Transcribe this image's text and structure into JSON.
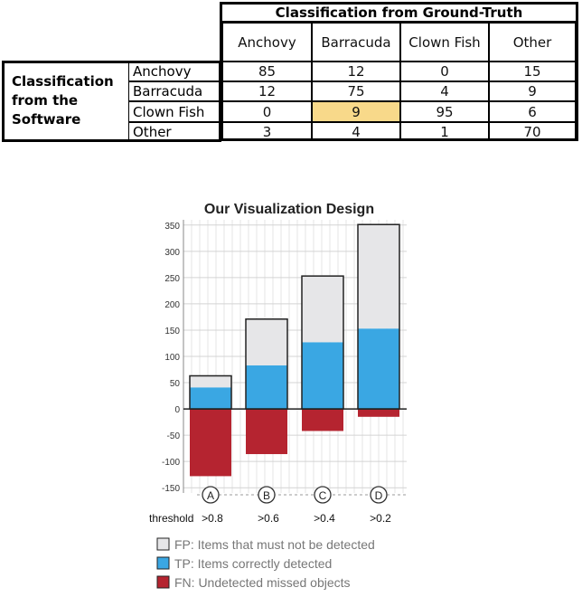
{
  "matrix": {
    "gt_title": "Classification from Ground-Truth",
    "sw_title_lines": [
      "Classification",
      "from the",
      "Software"
    ],
    "columns": [
      "Anchovy",
      "Barracuda",
      "Clown Fish",
      "Other"
    ],
    "rows": [
      {
        "label": "Anchovy",
        "values": [
          "85",
          "12",
          "0",
          "15"
        ]
      },
      {
        "label": "Barracuda",
        "values": [
          "12",
          "75",
          "4",
          "9"
        ]
      },
      {
        "label": "Clown Fish",
        "values": [
          "0",
          "9",
          "95",
          "6"
        ]
      },
      {
        "label": "Other",
        "values": [
          "3",
          "4",
          "1",
          "70"
        ]
      }
    ],
    "highlight_color": "#f8d98a"
  },
  "chart_data": {
    "type": "bar",
    "title": "Our Visualization Design",
    "ylim": [
      -160,
      360
    ],
    "yticks": [
      350,
      300,
      250,
      200,
      150,
      100,
      50,
      0,
      -50,
      -100,
      -150
    ],
    "categories": [
      "A",
      "B",
      "C",
      "D"
    ],
    "threshold_label": "threshold",
    "x_labels": [
      ">0.8",
      ">0.6",
      ">0.4",
      ">0.2"
    ],
    "series": [
      {
        "name": "FP: Items that must not be detected",
        "values": [
          22,
          88,
          126,
          198
        ],
        "color": "#e6e6e8"
      },
      {
        "name": "TP: Items correctly detected",
        "values": [
          41,
          83,
          127,
          153
        ],
        "color": "#3aa7e3"
      },
      {
        "name": "FN: Undetected missed objects",
        "values": [
          -128,
          -86,
          -42,
          -15
        ],
        "color": "#b52430"
      }
    ],
    "grid": true,
    "legend_position": "bottom"
  }
}
